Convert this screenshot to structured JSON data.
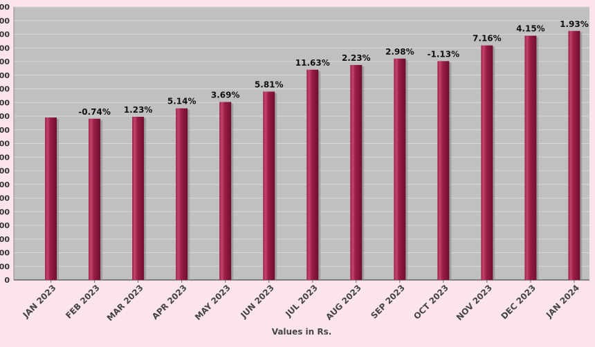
{
  "chart_data": {
    "type": "bar",
    "title": "",
    "xlabel": "Values in Rs.",
    "ylabel": "",
    "ylim": [
      0,
      4000
    ],
    "categories": [
      "JAN 2023",
      "FEB 2023",
      "MAR 2023",
      "APR 2023",
      "MAY 2023",
      "JUN 2023",
      "JUL 2023",
      "AUG 2023",
      "SEP 2023",
      "OCT 2023",
      "NOV 2023",
      "DEC 2023",
      "JAN 2024"
    ],
    "values": [
      2380,
      2362,
      2391,
      2514,
      2607,
      2759,
      3080,
      3149,
      3243,
      3206,
      3436,
      3578,
      3648
    ],
    "data_labels": [
      "",
      "-0.74%",
      "1.23%",
      "5.14%",
      "3.69%",
      "5.81%",
      "11.63%",
      "2.23%",
      "2.98%",
      "-1.13%",
      "7.16%",
      "4.15%",
      "1.93%"
    ],
    "y_ticks": [
      0,
      200,
      400,
      600,
      800,
      1000,
      1200,
      1400,
      1600,
      1800,
      2000,
      2200,
      2400,
      2600,
      2800,
      3000,
      3200,
      3400,
      3600,
      3800,
      4000
    ],
    "y_tick_labels": [
      "0",
      "00",
      "00",
      "00",
      "00",
      "00",
      "00",
      "00",
      "00",
      "00",
      "00",
      "00",
      "00",
      "00",
      "00",
      "00",
      "00",
      "00",
      "00",
      "00",
      "00"
    ],
    "grid": true,
    "legend": "none",
    "colors": {
      "bar": "#9b1c45",
      "bar_highlight": "#c2456c",
      "plot_bg": "#c0c0c0",
      "gridline": "#d8d8d8",
      "page_bg": "#fce4ec"
    }
  }
}
